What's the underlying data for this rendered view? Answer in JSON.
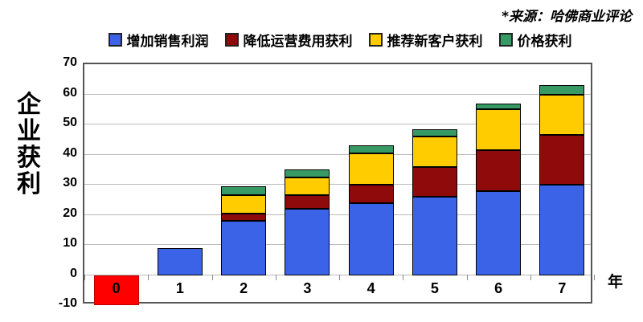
{
  "source_note": "*来源：哈佛商业评论",
  "y_axis": {
    "title": "企业获利",
    "tick_labels": [
      "70",
      "60",
      "50",
      "40",
      "30",
      "20",
      "10",
      "0",
      "-10"
    ]
  },
  "x_axis": {
    "unit_label": "年",
    "categories": [
      "0",
      "1",
      "2",
      "3",
      "4",
      "5",
      "6",
      "7"
    ]
  },
  "colors": {
    "loss_bar": "#FF0000",
    "series_blue": "#3B63E8",
    "series_darkred": "#8F0A0A",
    "series_yellow": "#FFCC00",
    "series_green": "#379A65",
    "gridline": "#BBBBBB",
    "frame": "#555555"
  },
  "chart_data": {
    "type": "bar",
    "stacked": true,
    "title": "",
    "xlabel": "年",
    "ylabel": "企业获利",
    "ylim": [
      -10,
      70
    ],
    "ytick_step": 10,
    "grid": true,
    "legend_position": "top",
    "categories": [
      "0",
      "1",
      "2",
      "3",
      "4",
      "5",
      "6",
      "7"
    ],
    "series": [
      {
        "name": "增加销售利润",
        "color": "#3B63E8",
        "values": [
          0,
          9,
          18,
          22,
          24,
          26,
          28,
          30
        ]
      },
      {
        "name": "降低运营费用获利",
        "color": "#8F0A0A",
        "values": [
          0,
          0,
          2.5,
          4.5,
          6,
          10,
          13.5,
          16.5
        ]
      },
      {
        "name": "推荐新客户获利",
        "color": "#FFCC00",
        "values": [
          0,
          0,
          6,
          6,
          10.5,
          10,
          13.5,
          13.5
        ]
      },
      {
        "name": "价格获利",
        "color": "#379A65",
        "values": [
          0,
          0,
          3,
          2.5,
          2.5,
          2.5,
          2,
          3
        ]
      }
    ],
    "negative_bar": {
      "category": "0",
      "value": -10,
      "color": "#FF0000"
    },
    "totals": [
      -10,
      9,
      29.5,
      35,
      43,
      48.5,
      57,
      63
    ],
    "source": "*来源：哈佛商业评论"
  }
}
